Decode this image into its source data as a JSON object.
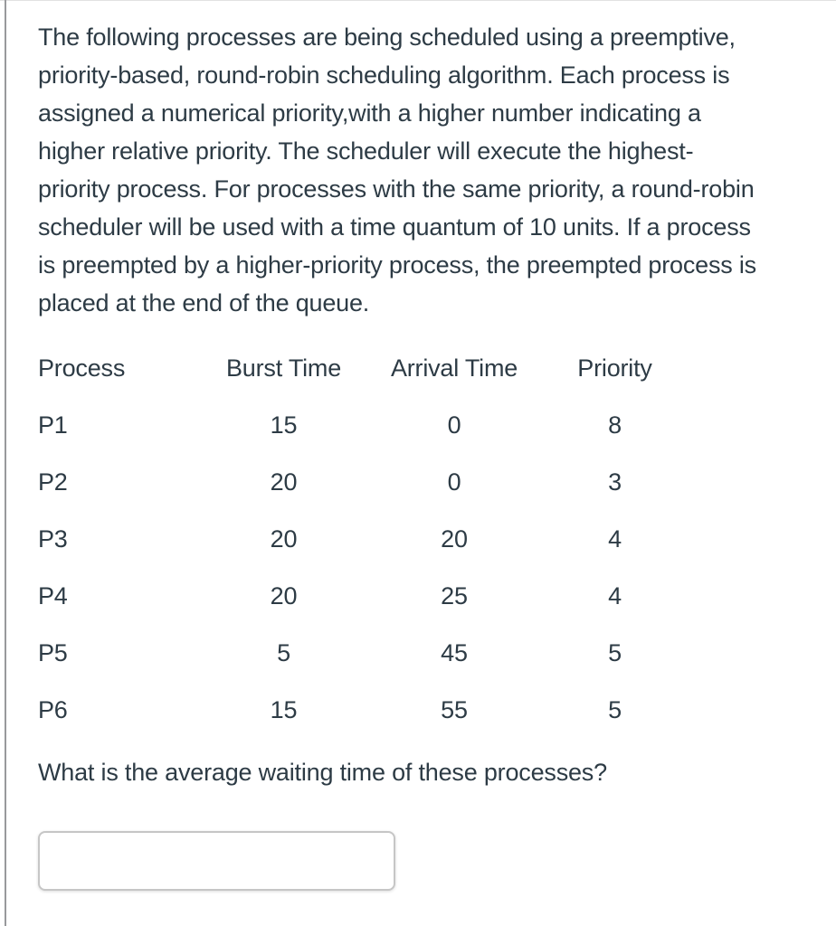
{
  "question": {
    "prompt_lines": [
      "The following processes are being scheduled using a preemptive,",
      "priority-based, round-robin scheduling algorithm. Each process is",
      "assigned a numerical priority,with a higher number indicating a",
      "higher relative priority. The scheduler will execute the highest-",
      "priority process. For processes with the same priority, a round-robin",
      "scheduler will be used with a time quantum of 10 units. If a process",
      "is preempted by a higher-priority process, the preempted process is",
      "placed at the end of the queue."
    ],
    "followup": "What is the average waiting time of these processes?"
  },
  "table": {
    "headers": [
      "Process",
      "Burst Time",
      "Arrival Time",
      "Priority"
    ],
    "rows": [
      {
        "process": "P1",
        "burst_time": "15",
        "arrival_time": "0",
        "priority": "8"
      },
      {
        "process": "P2",
        "burst_time": "20",
        "arrival_time": "0",
        "priority": "3"
      },
      {
        "process": "P3",
        "burst_time": "20",
        "arrival_time": "20",
        "priority": "4"
      },
      {
        "process": "P4",
        "burst_time": "20",
        "arrival_time": "25",
        "priority": "4"
      },
      {
        "process": "P5",
        "burst_time": "5",
        "arrival_time": "45",
        "priority": "5"
      },
      {
        "process": "P6",
        "burst_time": "15",
        "arrival_time": "55",
        "priority": "5"
      }
    ]
  },
  "answer_input": {
    "value": ""
  },
  "colors": {
    "text": "#2d3b45",
    "panel_edge": "#98999c",
    "input_border": "#c6c6c6"
  }
}
